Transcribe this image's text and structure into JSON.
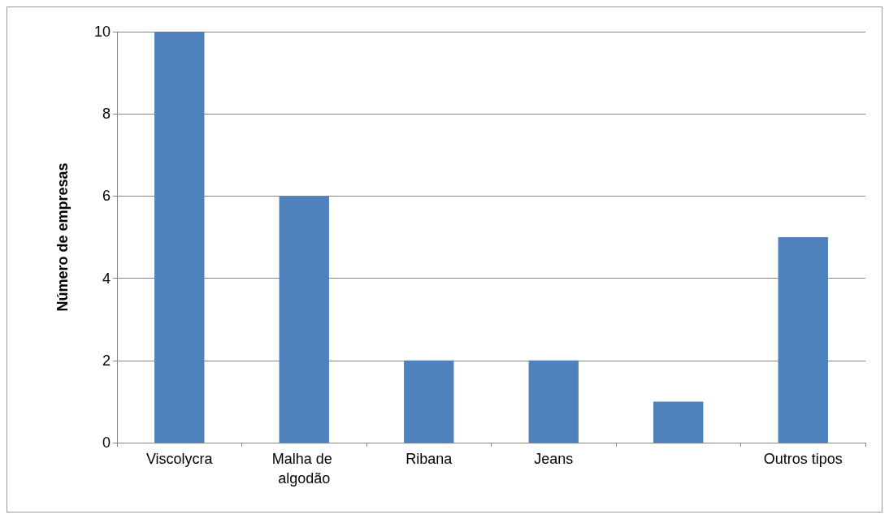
{
  "chart_data": {
    "type": "bar",
    "ylabel": "Número de empresas",
    "categories": [
      "Viscolycra",
      "Malha de algodão",
      "Ribana",
      "Jeans",
      null,
      "Outros tipos"
    ],
    "values": [
      10,
      6,
      2,
      2,
      1,
      5
    ],
    "color": "#4f81bd",
    "ylim": [
      0,
      10
    ],
    "yticks": [
      0,
      2,
      4,
      6,
      8,
      10
    ],
    "grid": "y"
  }
}
